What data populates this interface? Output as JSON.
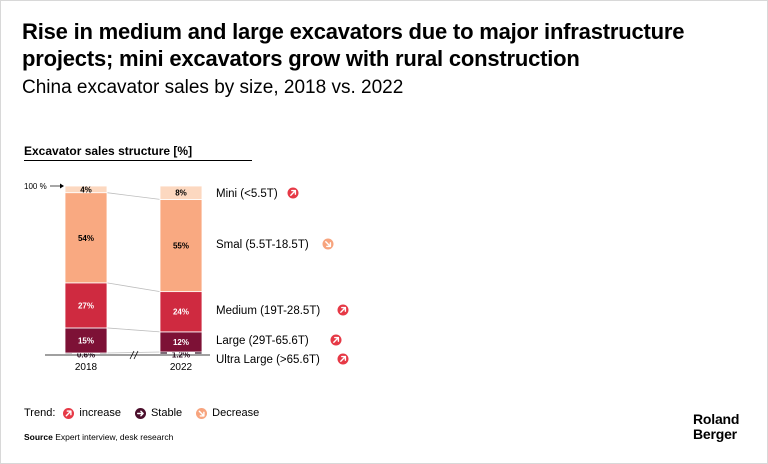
{
  "title": "Rise in medium and large excavators due to major infrastructure projects; mini excavators grow with rural construction",
  "subtitle": "China excavator sales by size, 2018 vs. 2022",
  "section_title": "Excavator sales structure [%]",
  "chart_data": {
    "type": "bar",
    "stacked": true,
    "unit": "%",
    "categories": [
      "2018",
      "2022"
    ],
    "series": [
      {
        "name": "Ultra Large (>65.6T)",
        "values": [
          0.6,
          1.2
        ],
        "labels": [
          "0.6%",
          "1.2%"
        ],
        "color": "#2b0a20",
        "trend": "increase"
      },
      {
        "name": "Large (29T-65.6T)",
        "values": [
          15,
          12
        ],
        "labels": [
          "15%",
          "12%"
        ],
        "color": "#7d1136",
        "trend": "increase"
      },
      {
        "name": "Medium (19T-28.5T)",
        "values": [
          27,
          24
        ],
        "labels": [
          "27%",
          "24%"
        ],
        "color": "#cf2a40",
        "trend": "increase"
      },
      {
        "name": "Smal (5.5T-18.5T)",
        "values": [
          54,
          55
        ],
        "labels": [
          "54%",
          "55%"
        ],
        "color": "#f9a981",
        "trend": "decrease"
      },
      {
        "name": "Mini (<5.5T)",
        "values": [
          4,
          8
        ],
        "labels": [
          "4%",
          "8%"
        ],
        "color": "#fcd8c0",
        "trend": "increase"
      }
    ],
    "y_axis_label": "100 %",
    "ylim": [
      0,
      100
    ]
  },
  "legend": {
    "label": "Trend:",
    "items": [
      {
        "text": "increase",
        "kind": "increase"
      },
      {
        "text": "Stable",
        "kind": "stable"
      },
      {
        "text": "Decrease",
        "kind": "decrease"
      }
    ]
  },
  "colors": {
    "increase": "#e63946",
    "stable": "#4a0e2b",
    "decrease": "#f7a47e"
  },
  "source": {
    "label": "Source",
    "text": "Expert interview, desk research"
  },
  "logo": {
    "line1": "Roland",
    "line2": "Berger"
  }
}
